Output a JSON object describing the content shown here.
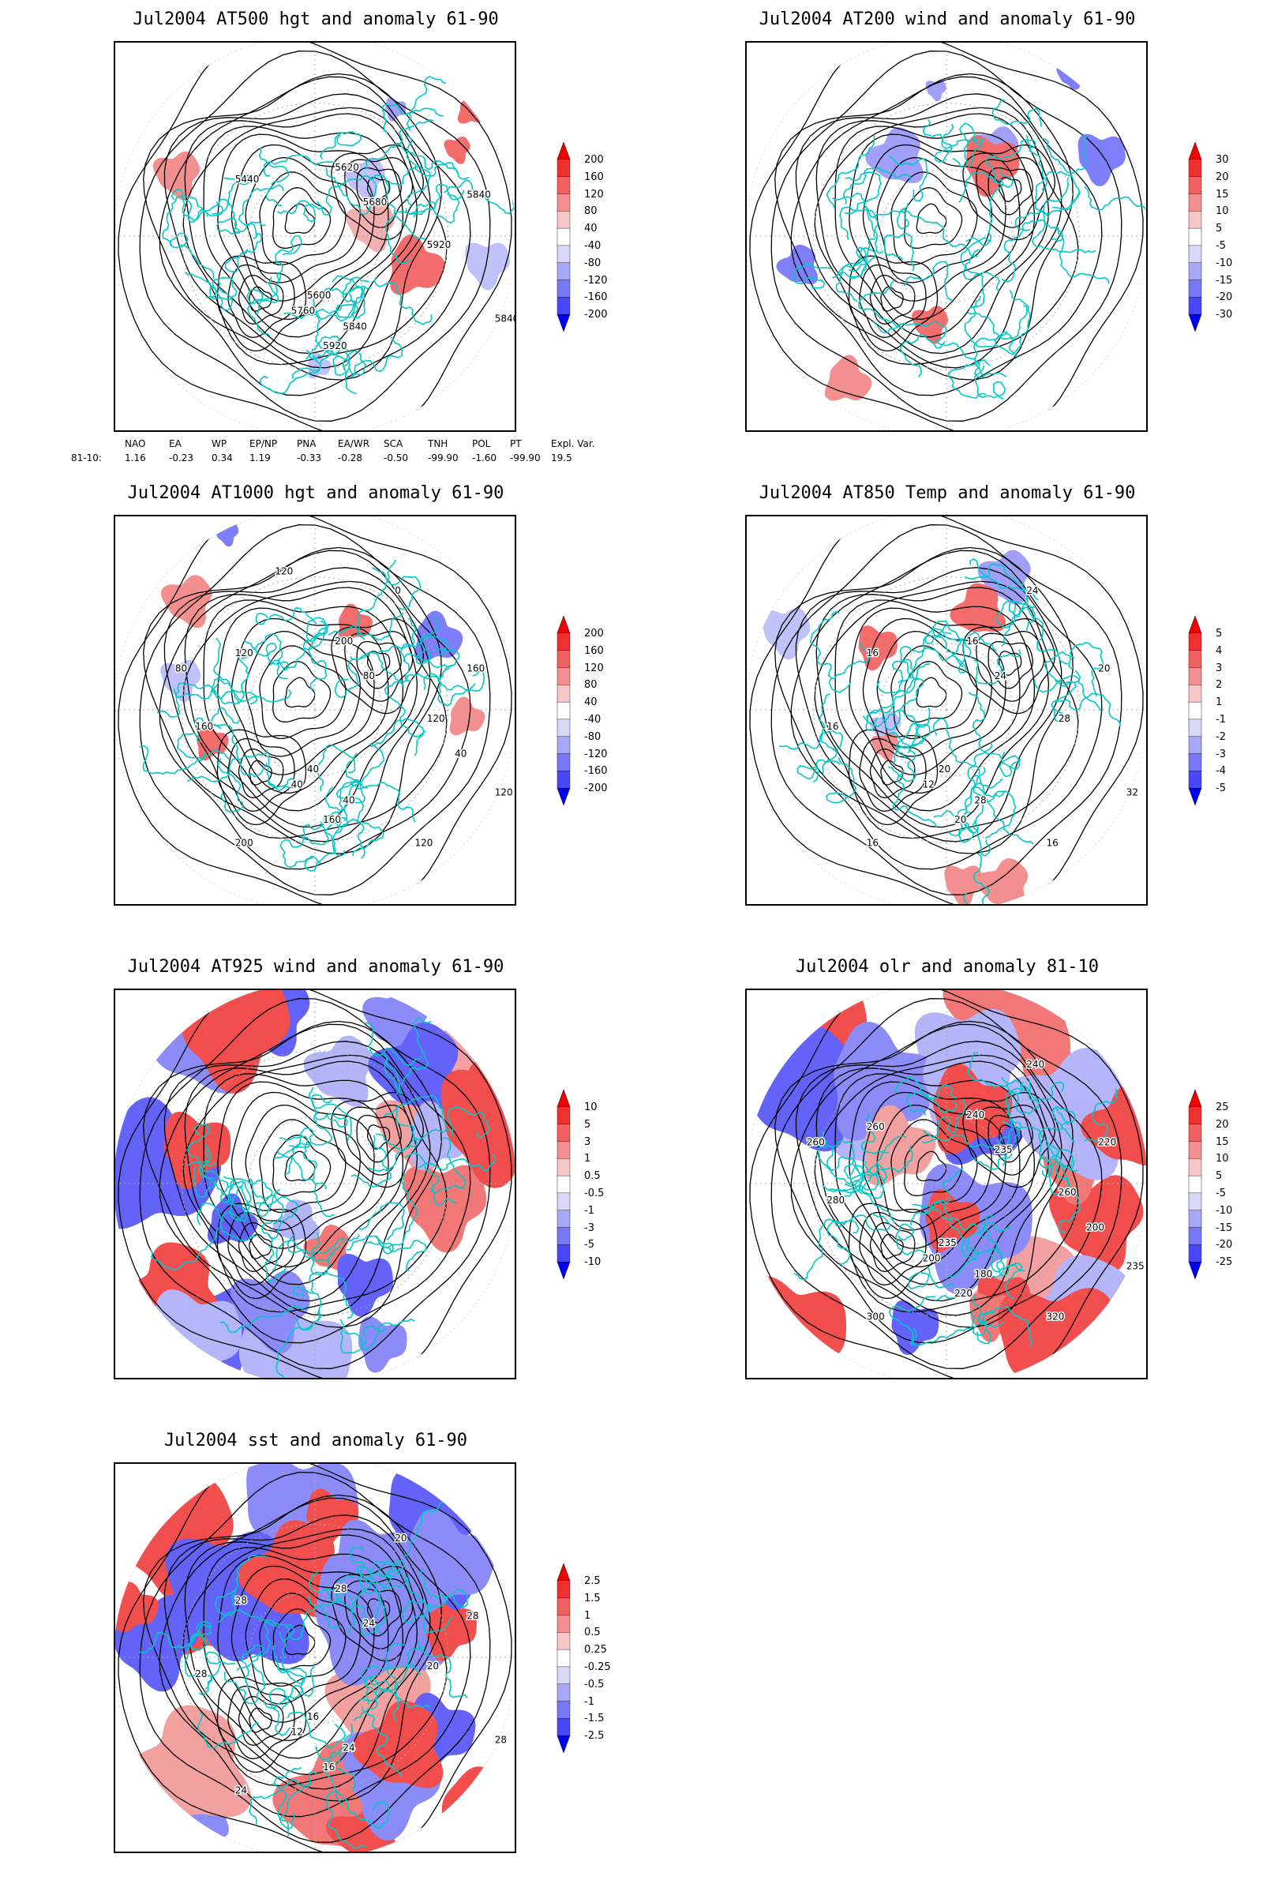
{
  "panels": [
    {
      "id": "p1",
      "title": "Jul2004 AT500 hgt and anomaly 61-90",
      "colorbar": [
        "200",
        "160",
        "120",
        "80",
        "40",
        "-40",
        "-80",
        "-120",
        "-160",
        "-200"
      ],
      "contour_labels": [
        "5440",
        "5620",
        "5680",
        "5840",
        "5920",
        "5600",
        "5760",
        "5840",
        "5840",
        "5920"
      ],
      "has_anomaly_shading": false
    },
    {
      "id": "p2",
      "title": "Jul2004 AT200 wind and anomaly 61-90",
      "colorbar": [
        "30",
        "20",
        "15",
        "10",
        "5",
        "-5",
        "-10",
        "-15",
        "-20",
        "-30"
      ],
      "contour_labels": [],
      "has_anomaly_shading": false
    },
    {
      "id": "p3",
      "title": "Jul2004 AT1000 hgt and anomaly 61-90",
      "colorbar": [
        "200",
        "160",
        "120",
        "80",
        "40",
        "-40",
        "-80",
        "-120",
        "-160",
        "-200"
      ],
      "contour_labels": [
        "120",
        "200",
        "80",
        "160",
        "120",
        "40",
        "40",
        "40",
        "120",
        "160",
        "0",
        "200",
        "160",
        "120",
        "80",
        "40",
        "120"
      ],
      "has_anomaly_shading": false
    },
    {
      "id": "p4",
      "title": "Jul2004 AT850 Temp and anomaly 61-90",
      "colorbar": [
        "5",
        "4",
        "3",
        "2",
        "1",
        "-1",
        "-2",
        "-3",
        "-4",
        "-5"
      ],
      "contour_labels": [
        "16",
        "16",
        "24",
        "20",
        "28",
        "20",
        "12",
        "28",
        "32",
        "20",
        "24",
        "16",
        "16",
        "16"
      ],
      "has_anomaly_shading": false
    },
    {
      "id": "p5",
      "title": "Jul2004 AT925 wind and anomaly 61-90",
      "colorbar": [
        "10",
        "5",
        "3",
        "1",
        "0.5",
        "-0.5",
        "-1",
        "-3",
        "-5",
        "-10"
      ],
      "contour_labels": [],
      "has_anomaly_shading": true
    },
    {
      "id": "p6",
      "title": "Jul2004 olr and anomaly 81-10",
      "colorbar": [
        "25",
        "20",
        "15",
        "10",
        "5",
        "-5",
        "-10",
        "-15",
        "-20",
        "-25"
      ],
      "contour_labels": [
        "260",
        "240",
        "235",
        "220",
        "260",
        "235",
        "200",
        "180",
        "235",
        "220",
        "240",
        "300",
        "280",
        "320",
        "260",
        "200"
      ],
      "has_anomaly_shading": true
    },
    {
      "id": "p7",
      "title": "Jul2004 sst and anomaly 61-90",
      "colorbar": [
        "2.5",
        "1.5",
        "1",
        "0.5",
        "0.25",
        "-0.25",
        "-0.5",
        "-1",
        "-1.5",
        "-2.5"
      ],
      "contour_labels": [
        "28",
        "28",
        "24",
        "28",
        "20",
        "16",
        "12",
        "24",
        "28",
        "16",
        "20",
        "24",
        "28"
      ],
      "has_anomaly_shading": true
    }
  ],
  "indices": {
    "headers": [
      "NAO",
      "EA",
      "WP",
      "EP/NP",
      "PNA",
      "EA/WR",
      "SCA",
      "TNH",
      "POL",
      "PT",
      "Expl. Var."
    ],
    "row_label": "81-10:",
    "values": [
      "1.16",
      "-0.23",
      "0.34",
      "1.19",
      "-0.33",
      "-0.28",
      "-0.50",
      "-99.90",
      "-1.60",
      "-99.90",
      "19.5"
    ]
  },
  "colors": {
    "coast": "#00c8c8",
    "contour": "#000000",
    "grid": "#aaaaaa",
    "pos": [
      "#f00000",
      "#f03030",
      "#f06060",
      "#f09090",
      "#f8c8c8",
      "#ffffff"
    ],
    "neg": [
      "#ffffff",
      "#d8d8f8",
      "#a8a8f8",
      "#7878f8",
      "#4848f8",
      "#0000f0"
    ]
  }
}
